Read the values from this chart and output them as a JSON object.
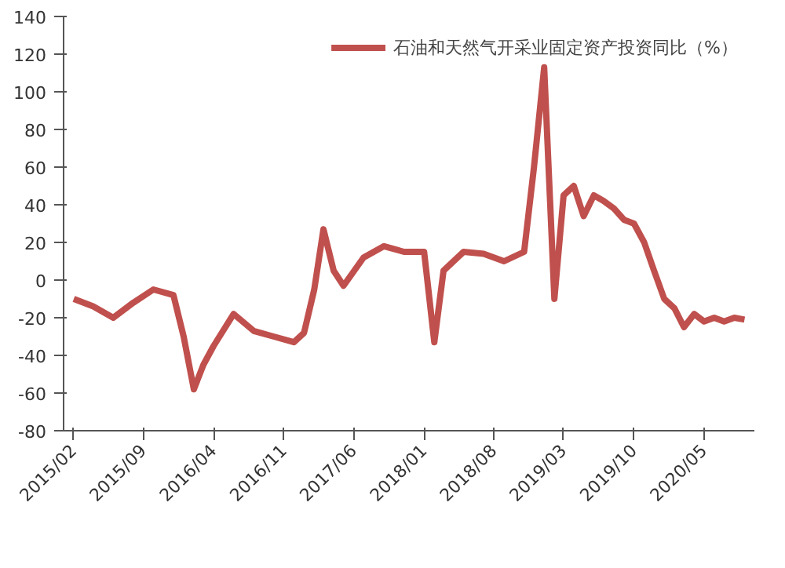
{
  "chart_data": {
    "type": "line",
    "x": [
      "2015-02",
      "2015-04",
      "2015-06",
      "2015-08",
      "2015-10",
      "2015-12",
      "2016-01",
      "2016-02",
      "2016-03",
      "2016-04",
      "2016-06",
      "2016-08",
      "2016-10",
      "2016-12",
      "2017-01",
      "2017-02",
      "2017-03",
      "2017-04",
      "2017-05",
      "2017-07",
      "2017-09",
      "2017-11",
      "2018-01",
      "2018-02",
      "2018-03",
      "2018-05",
      "2018-07",
      "2018-09",
      "2018-11",
      "2018-12",
      "2019-01",
      "2019-02",
      "2019-03",
      "2019-04",
      "2019-05",
      "2019-06",
      "2019-07",
      "2019-08",
      "2019-09",
      "2019-10",
      "2019-11",
      "2019-12",
      "2020-01",
      "2020-02",
      "2020-03",
      "2020-04",
      "2020-05",
      "2020-06",
      "2020-07",
      "2020-08",
      "2020-09"
    ],
    "series": [
      {
        "name": "石油和天然气开采业固定资产投资同比（%）",
        "color": "#c0504d",
        "values": [
          -10,
          -14,
          -20,
          -12,
          -5,
          -8,
          -30,
          -58,
          -45,
          -35,
          -18,
          -27,
          -30,
          -33,
          -28,
          -5,
          27,
          5,
          -3,
          12,
          18,
          15,
          15,
          -33,
          5,
          15,
          14,
          10,
          15,
          60,
          113,
          -10,
          45,
          50,
          34,
          45,
          42,
          38,
          32,
          30,
          20,
          5,
          -10,
          -15,
          -25,
          -18,
          -22,
          -20,
          -22,
          -20,
          -21
        ]
      }
    ],
    "xlim": [
      "2015-01",
      "2020-10"
    ],
    "xticks": [
      {
        "value": "2015-02",
        "label": "2015/02"
      },
      {
        "value": "2015-09",
        "label": "2015/09"
      },
      {
        "value": "2016-04",
        "label": "2016/04"
      },
      {
        "value": "2016-11",
        "label": "2016/11"
      },
      {
        "value": "2017-06",
        "label": "2017/06"
      },
      {
        "value": "2018-01",
        "label": "2018/01"
      },
      {
        "value": "2018-08",
        "label": "2018/08"
      },
      {
        "value": "2019-03",
        "label": "2019/03"
      },
      {
        "value": "2019-10",
        "label": "2019/10"
      },
      {
        "value": "2020-05",
        "label": "2020/05"
      }
    ],
    "ylim": [
      -80,
      140
    ],
    "yticks": [
      -80,
      -60,
      -40,
      -20,
      0,
      20,
      40,
      60,
      80,
      100,
      120,
      140
    ],
    "grid": false,
    "legend": "top right",
    "marker": "none",
    "line_style": "solid"
  }
}
